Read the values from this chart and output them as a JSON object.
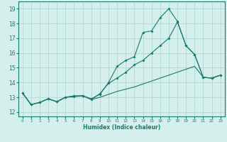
{
  "xlabel": "Humidex (Indice chaleur)",
  "bg_color": "#d4efec",
  "grid_color": "#b0d8d4",
  "line_color": "#1a7a6e",
  "xlim": [
    -0.5,
    23.5
  ],
  "ylim": [
    11.7,
    19.5
  ],
  "yticks": [
    12,
    13,
    14,
    15,
    16,
    17,
    18,
    19
  ],
  "xticks": [
    0,
    1,
    2,
    3,
    4,
    5,
    6,
    7,
    8,
    9,
    10,
    11,
    12,
    13,
    14,
    15,
    16,
    17,
    18,
    19,
    20,
    21,
    22,
    23
  ],
  "line1_x": [
    0,
    1,
    2,
    3,
    4,
    5,
    6,
    7,
    8,
    9,
    10,
    11,
    12,
    13,
    14,
    15,
    16,
    17,
    18,
    19,
    20,
    21,
    22,
    23
  ],
  "line1_y": [
    13.3,
    12.5,
    12.65,
    12.9,
    12.7,
    13.0,
    13.1,
    13.1,
    12.9,
    13.2,
    14.0,
    15.1,
    15.5,
    15.75,
    17.4,
    17.5,
    18.4,
    19.0,
    18.15,
    16.5,
    15.9,
    14.35,
    14.3,
    14.5
  ],
  "line2_x": [
    0,
    1,
    2,
    3,
    4,
    5,
    6,
    7,
    8,
    9,
    10,
    11,
    12,
    13,
    14,
    15,
    16,
    17,
    18,
    19,
    20,
    21,
    22,
    23
  ],
  "line2_y": [
    13.3,
    12.5,
    12.65,
    12.9,
    12.7,
    13.0,
    13.05,
    13.1,
    12.85,
    13.25,
    13.95,
    14.3,
    14.7,
    15.2,
    15.5,
    16.0,
    16.5,
    17.0,
    18.1,
    16.5,
    15.9,
    14.35,
    14.3,
    14.5
  ],
  "line3_x": [
    0,
    1,
    2,
    3,
    4,
    5,
    6,
    7,
    8,
    9,
    10,
    11,
    12,
    13,
    14,
    15,
    16,
    17,
    18,
    19,
    20,
    21,
    22,
    23
  ],
  "line3_y": [
    13.3,
    12.5,
    12.65,
    12.9,
    12.7,
    13.0,
    13.05,
    13.1,
    12.85,
    13.0,
    13.2,
    13.4,
    13.55,
    13.7,
    13.9,
    14.1,
    14.3,
    14.5,
    14.7,
    14.9,
    15.1,
    14.35,
    14.3,
    14.5
  ]
}
